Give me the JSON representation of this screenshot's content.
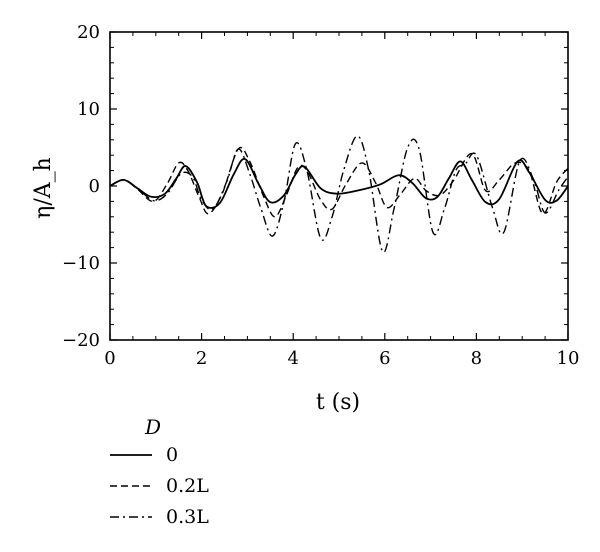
{
  "chart_data": {
    "type": "line",
    "xlabel": "t (s)",
    "ylabel": "η/A_h",
    "xlim": [
      0,
      10
    ],
    "ylim": [
      -20,
      20
    ],
    "xticks": [
      "0",
      "2",
      "4",
      "6",
      "8",
      "10"
    ],
    "yticks": [
      "20",
      "10",
      "0",
      "−10",
      "−20"
    ],
    "grid": false,
    "legend": {
      "title": "D",
      "placement": "bottom-left-outside"
    },
    "series": [
      {
        "name": "0",
        "style": "solid",
        "points": [
          [
            0,
            0
          ],
          [
            0.3,
            0.8
          ],
          [
            0.6,
            -0.3
          ],
          [
            0.9,
            -1.4
          ],
          [
            1.2,
            -1.0
          ],
          [
            1.45,
            1.0
          ],
          [
            1.65,
            2.6
          ],
          [
            1.9,
            0.5
          ],
          [
            2.1,
            -2.6
          ],
          [
            2.4,
            -2.2
          ],
          [
            2.7,
            1.5
          ],
          [
            2.95,
            3.5
          ],
          [
            3.25,
            0.2
          ],
          [
            3.5,
            -2.1
          ],
          [
            3.8,
            -1.2
          ],
          [
            4.05,
            1.5
          ],
          [
            4.25,
            2.5
          ],
          [
            4.6,
            -0.3
          ],
          [
            4.95,
            -1.0
          ],
          [
            5.4,
            -0.6
          ],
          [
            5.9,
            0.2
          ],
          [
            6.3,
            1.4
          ],
          [
            6.6,
            0.4
          ],
          [
            6.9,
            -1.6
          ],
          [
            7.15,
            -1.4
          ],
          [
            7.4,
            1.0
          ],
          [
            7.65,
            3.2
          ],
          [
            7.9,
            0.8
          ],
          [
            8.2,
            -2.1
          ],
          [
            8.5,
            -1.7
          ],
          [
            8.9,
            3.2
          ],
          [
            9.15,
            1.8
          ],
          [
            9.5,
            -1.8
          ],
          [
            9.75,
            -1.9
          ],
          [
            10,
            0
          ]
        ]
      },
      {
        "name": "0.2L",
        "style": "dashed",
        "points": [
          [
            0,
            0
          ],
          [
            0.3,
            0.8
          ],
          [
            0.6,
            -0.4
          ],
          [
            0.95,
            -2.0
          ],
          [
            1.25,
            0.3
          ],
          [
            1.5,
            3.0
          ],
          [
            1.7,
            2.0
          ],
          [
            1.95,
            -1.5
          ],
          [
            2.15,
            -3.6
          ],
          [
            2.45,
            -1.0
          ],
          [
            2.8,
            4.8
          ],
          [
            3.05,
            3.2
          ],
          [
            3.35,
            -1.3
          ],
          [
            3.6,
            -4.0
          ],
          [
            3.85,
            -1.2
          ],
          [
            4.1,
            2.4
          ],
          [
            4.3,
            2.0
          ],
          [
            4.6,
            -1.8
          ],
          [
            4.85,
            -3.0
          ],
          [
            5.15,
            0.2
          ],
          [
            5.5,
            3.0
          ],
          [
            5.8,
            0.4
          ],
          [
            6.05,
            -2.8
          ],
          [
            6.35,
            -1.0
          ],
          [
            6.65,
            1.0
          ],
          [
            6.9,
            -0.6
          ],
          [
            7.2,
            -1.2
          ],
          [
            7.5,
            0.7
          ],
          [
            7.9,
            4.2
          ],
          [
            8.2,
            -0.6
          ],
          [
            8.5,
            0.8
          ],
          [
            8.85,
            3.0
          ],
          [
            9.15,
            2.0
          ],
          [
            9.45,
            -3.6
          ],
          [
            9.75,
            0.5
          ],
          [
            10,
            2.3
          ]
        ]
      },
      {
        "name": "0.3L",
        "style": "dashdot",
        "points": [
          [
            0,
            0
          ],
          [
            0.3,
            0.8
          ],
          [
            0.6,
            -0.3
          ],
          [
            0.95,
            -1.9
          ],
          [
            1.25,
            -1.0
          ],
          [
            1.55,
            1.6
          ],
          [
            1.8,
            1.2
          ],
          [
            2.0,
            -1.8
          ],
          [
            2.25,
            -3.0
          ],
          [
            2.55,
            0.6
          ],
          [
            2.8,
            4.8
          ],
          [
            3.05,
            1.6
          ],
          [
            3.3,
            -3.0
          ],
          [
            3.55,
            -6.5
          ],
          [
            3.8,
            -2.0
          ],
          [
            4.05,
            5.5
          ],
          [
            4.3,
            2.0
          ],
          [
            4.6,
            -6.8
          ],
          [
            4.85,
            -4.0
          ],
          [
            5.1,
            2.0
          ],
          [
            5.4,
            6.5
          ],
          [
            5.65,
            2.0
          ],
          [
            5.95,
            -8.5
          ],
          [
            6.2,
            -3.0
          ],
          [
            6.5,
            5.0
          ],
          [
            6.75,
            4.8
          ],
          [
            7.05,
            -6.0
          ],
          [
            7.3,
            -3.0
          ],
          [
            7.55,
            2.0
          ],
          [
            7.75,
            2.8
          ],
          [
            8.0,
            4.0
          ],
          [
            8.35,
            -2.8
          ],
          [
            8.6,
            -6.0
          ],
          [
            8.95,
            3.3
          ],
          [
            9.25,
            0.8
          ],
          [
            9.5,
            -3.5
          ],
          [
            9.8,
            -0.5
          ],
          [
            10,
            1.2
          ]
        ]
      }
    ]
  }
}
